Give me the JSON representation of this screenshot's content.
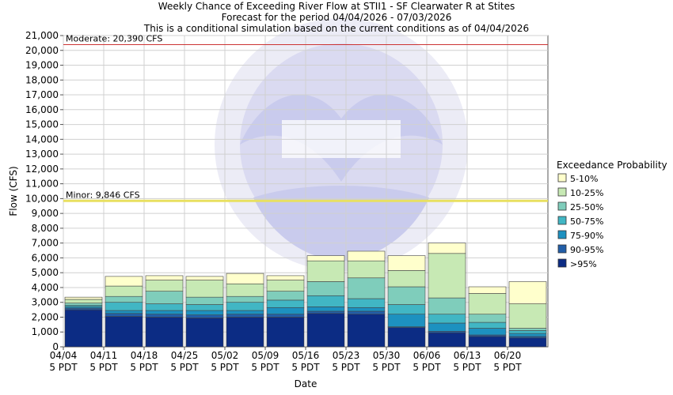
{
  "chart_data": {
    "type": "bar",
    "title": "Weekly Chance of Exceeding River Flow at STII1 - SF Clearwater R at Stites",
    "subtitle": "Forecast for the period 04/04/2026 - 07/03/2026",
    "subtitle2": "This is a conditional simulation based on the current conditions as of 04/04/2026",
    "xlabel": "Date",
    "ylabel": "Flow (CFS)",
    "ylim": [
      0,
      21000
    ],
    "ytick_step": 1000,
    "yticks": [
      "0",
      "1,000",
      "2,000",
      "3,000",
      "4,000",
      "5,000",
      "6,000",
      "7,000",
      "8,000",
      "9,000",
      "10,000",
      "11,000",
      "12,000",
      "13,000",
      "14,000",
      "15,000",
      "16,000",
      "17,000",
      "18,000",
      "19,000",
      "20,000",
      "21,000"
    ],
    "x_tick_labels": [
      [
        "04/04",
        "5 PDT"
      ],
      [
        "04/11",
        "5 PDT"
      ],
      [
        "04/18",
        "5 PDT"
      ],
      [
        "04/25",
        "5 PDT"
      ],
      [
        "05/02",
        "5 PDT"
      ],
      [
        "05/09",
        "5 PDT"
      ],
      [
        "05/16",
        "5 PDT"
      ],
      [
        "05/23",
        "5 PDT"
      ],
      [
        "05/30",
        "5 PDT"
      ],
      [
        "06/06",
        "5 PDT"
      ],
      [
        "06/13",
        "5 PDT"
      ],
      [
        "06/20",
        "5 PDT"
      ]
    ],
    "grid": true,
    "thresholds": [
      {
        "label": "Moderate: 20,390 CFS",
        "value": 20390,
        "color": "#cc3333"
      },
      {
        "label": "Minor: 9,846 CFS",
        "value": 9846,
        "color": "#e8e060"
      }
    ],
    "legend_title": "Exceedance Probability",
    "legend_position": "right",
    "series": [
      {
        "name": "5-10%",
        "color": "#ffffcc"
      },
      {
        "name": "10-25%",
        "color": "#c7e9b4"
      },
      {
        "name": "25-50%",
        "color": "#7fcdbb"
      },
      {
        "name": "50-75%",
        "color": "#41b6c4"
      },
      {
        "name": "75-90%",
        "color": "#1d91c0"
      },
      {
        "name": "90-95%",
        "color": "#225ea8"
      },
      {
        "name": ">95%",
        "color": "#0c2c84"
      }
    ],
    "weeks": [
      {
        "bounds": [
          2500,
          2600,
          2700,
          2800,
          2950,
          3200,
          3350
        ]
      },
      {
        "bounds": [
          2050,
          2250,
          2450,
          3000,
          3400,
          4100,
          4750
        ]
      },
      {
        "bounds": [
          2000,
          2200,
          2450,
          2900,
          3750,
          4500,
          4800
        ]
      },
      {
        "bounds": [
          1950,
          2150,
          2450,
          2850,
          3350,
          4500,
          4750
        ]
      },
      {
        "bounds": [
          2000,
          2200,
          2450,
          3000,
          3400,
          4250,
          4950
        ]
      },
      {
        "bounds": [
          2000,
          2200,
          2650,
          3150,
          3750,
          4500,
          4800
        ]
      },
      {
        "bounds": [
          2250,
          2400,
          2700,
          3450,
          4400,
          5800,
          6150
        ]
      },
      {
        "bounds": [
          2200,
          2400,
          2650,
          3250,
          4650,
          5800,
          6450
        ]
      },
      {
        "bounds": [
          1300,
          1350,
          2200,
          2850,
          4050,
          5150,
          6150
        ]
      },
      {
        "bounds": [
          950,
          1050,
          1600,
          2200,
          3300,
          6300,
          7000
        ]
      },
      {
        "bounds": [
          700,
          800,
          1250,
          1650,
          2200,
          3600,
          4050
        ]
      },
      {
        "bounds": [
          600,
          700,
          900,
          1100,
          1250,
          2900,
          4400
        ]
      }
    ]
  }
}
